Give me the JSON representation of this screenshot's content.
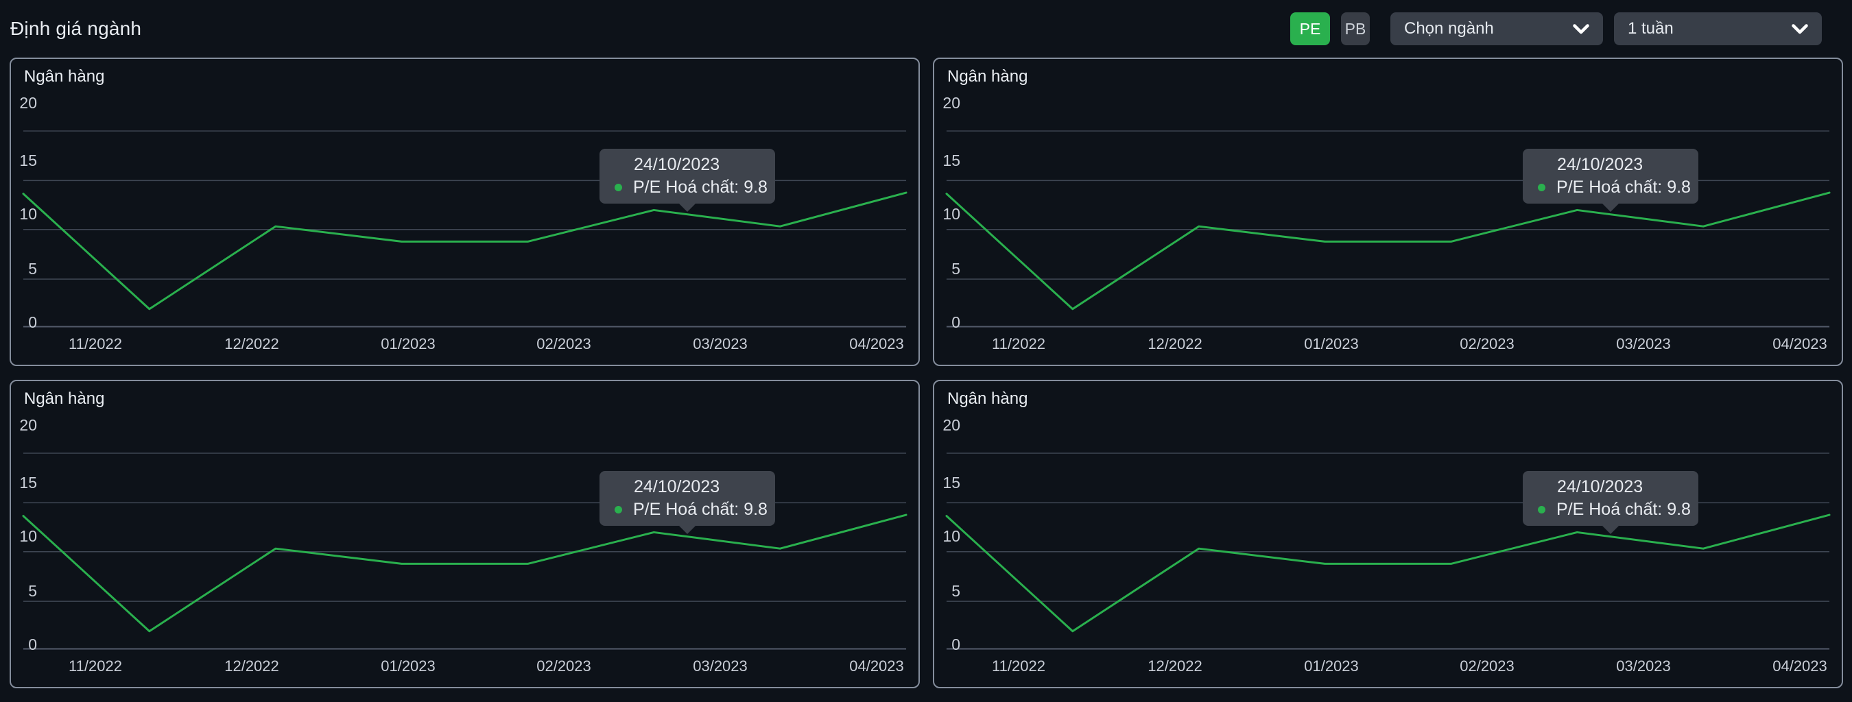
{
  "header": {
    "title": "Định giá ngành",
    "pe_button": "PE",
    "pb_button": "PB",
    "industry_select": {
      "value": "Chọn ngành",
      "icon": "chevron-down-icon"
    },
    "period_select": {
      "value": "1 tuần",
      "icon": "chevron-down-icon"
    }
  },
  "colors": {
    "background": "#0d1219",
    "card_border": "#848d9c",
    "grid_line": "#3f4754",
    "axis_line": "#525b6a",
    "series_green": "#2ab04e",
    "pe_active_bg": "#2ab04e",
    "pb_bg": "#383d46",
    "select_bg": "#383e48",
    "tooltip_bg": "#3e434c",
    "text_primary": "#e9edf2",
    "text_axis": "#c9ced7"
  },
  "chart_data": [
    {
      "type": "line",
      "title": "Ngân hàng",
      "x_tick_labels": [
        "11/2022",
        "12/2022",
        "01/2023",
        "02/2023",
        "03/2023",
        "04/2023"
      ],
      "y_ticks": [
        "20",
        "15",
        "10",
        "5",
        "0"
      ],
      "ylim": [
        0,
        20
      ],
      "grid": true,
      "legend": false,
      "series": [
        {
          "name": "P/E Hoá chất",
          "color": "#2ab04e",
          "values": [
            11.6,
            1.0,
            8.6,
            7.2,
            7.2,
            10.1,
            8.6,
            11.7
          ]
        }
      ],
      "tooltip": {
        "date": "24/10/2023",
        "text": "P/E Hoá chất: 9.8",
        "series": "P/E Hoá chất",
        "value": 9.8
      }
    },
    {
      "type": "line",
      "title": "Ngân hàng",
      "x_tick_labels": [
        "11/2022",
        "12/2022",
        "01/2023",
        "02/2023",
        "03/2023",
        "04/2023"
      ],
      "y_ticks": [
        "20",
        "15",
        "10",
        "5",
        "0"
      ],
      "ylim": [
        0,
        20
      ],
      "grid": true,
      "legend": false,
      "series": [
        {
          "name": "P/E Hoá chất",
          "color": "#2ab04e",
          "values": [
            11.6,
            1.0,
            8.6,
            7.2,
            7.2,
            10.1,
            8.6,
            11.7
          ]
        }
      ],
      "tooltip": {
        "date": "24/10/2023",
        "text": "P/E Hoá chất: 9.8",
        "series": "P/E Hoá chất",
        "value": 9.8
      }
    },
    {
      "type": "line",
      "title": "Ngân hàng",
      "x_tick_labels": [
        "11/2022",
        "12/2022",
        "01/2023",
        "02/2023",
        "03/2023",
        "04/2023"
      ],
      "y_ticks": [
        "20",
        "15",
        "10",
        "5",
        "0"
      ],
      "ylim": [
        0,
        20
      ],
      "grid": true,
      "legend": false,
      "series": [
        {
          "name": "P/E Hoá chất",
          "color": "#2ab04e",
          "values": [
            11.6,
            1.0,
            8.6,
            7.2,
            7.2,
            10.1,
            8.6,
            11.7
          ]
        }
      ],
      "tooltip": {
        "date": "24/10/2023",
        "text": "P/E Hoá chất: 9.8",
        "series": "P/E Hoá chất",
        "value": 9.8
      }
    },
    {
      "type": "line",
      "title": "Ngân hàng",
      "x_tick_labels": [
        "11/2022",
        "12/2022",
        "01/2023",
        "02/2023",
        "03/2023",
        "04/2023"
      ],
      "y_ticks": [
        "20",
        "15",
        "10",
        "5",
        "0"
      ],
      "ylim": [
        0,
        20
      ],
      "grid": true,
      "legend": false,
      "series": [
        {
          "name": "P/E Hoá chất",
          "color": "#2ab04e",
          "values": [
            11.6,
            1.0,
            8.6,
            7.2,
            7.2,
            10.1,
            8.6,
            11.7
          ]
        }
      ],
      "tooltip": {
        "date": "24/10/2023",
        "text": "P/E Hoá chất: 9.8",
        "series": "P/E Hoá chất",
        "value": 9.8
      }
    }
  ]
}
